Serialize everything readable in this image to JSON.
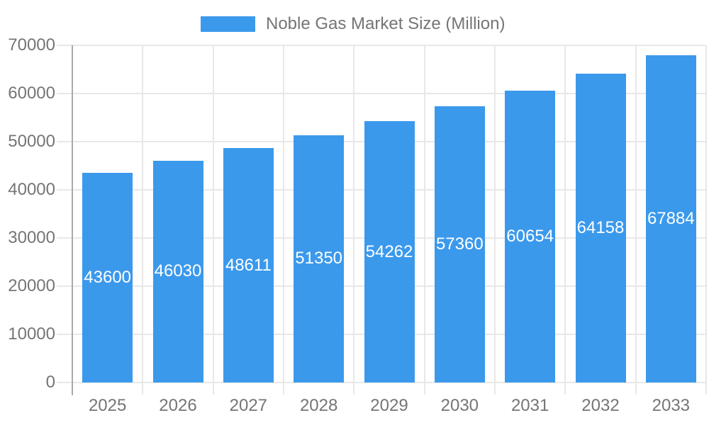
{
  "legend": {
    "label": "Noble Gas Market Size (Million)"
  },
  "chart_data": {
    "type": "bar",
    "title": "Noble Gas Market Size (Million)",
    "categories": [
      "2025",
      "2026",
      "2027",
      "2028",
      "2029",
      "2030",
      "2031",
      "2032",
      "2033"
    ],
    "values": [
      43600,
      46030,
      48611,
      51350,
      54262,
      57360,
      60654,
      64158,
      67884
    ],
    "value_labels": [
      "43600",
      "46030",
      "48611",
      "51350",
      "54262",
      "57360",
      "60654",
      "64158",
      "67884"
    ],
    "xlabel": "",
    "ylabel": "",
    "ylim": [
      0,
      70000
    ],
    "yticks": [
      0,
      10000,
      20000,
      30000,
      40000,
      50000,
      60000,
      70000
    ],
    "ytick_labels": [
      "0",
      "10000",
      "20000",
      "30000",
      "40000",
      "50000",
      "60000",
      "70000"
    ],
    "grid": true,
    "legend_position": "top",
    "value_label_position": "inside-center"
  },
  "colors": {
    "bar": "#3B99EC",
    "grid": "#E8E8E8",
    "axis": "#A9A9A9",
    "tick_text": "#757575",
    "value_text": "#FFFFFF",
    "background": "#FFFFFF"
  }
}
